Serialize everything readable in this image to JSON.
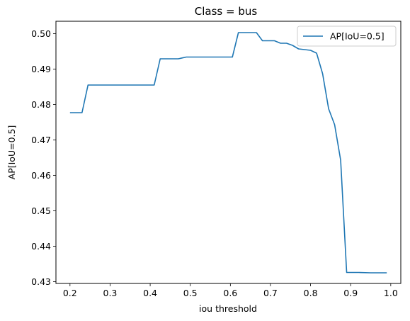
{
  "chart_data": {
    "type": "line",
    "title": "Class = bus",
    "xlabel": "iou threshold",
    "ylabel": "AP[IoU=0.5]",
    "xlim": [
      0.165,
      1.025
    ],
    "ylim": [
      0.4295,
      0.5035
    ],
    "xticks": [
      "0.2",
      "0.3",
      "0.4",
      "0.5",
      "0.6",
      "0.7",
      "0.8",
      "0.9",
      "1.0"
    ],
    "yticks": [
      "0.43",
      "0.44",
      "0.45",
      "0.46",
      "0.47",
      "0.48",
      "0.49",
      "0.50"
    ],
    "legend_position": "upper right",
    "grid": false,
    "series": [
      {
        "name": "AP[IoU=0.5]",
        "color": "#1f77b4",
        "x": [
          0.2,
          0.23,
          0.245,
          0.26,
          0.3,
          0.35,
          0.41,
          0.425,
          0.44,
          0.47,
          0.49,
          0.52,
          0.56,
          0.605,
          0.62,
          0.65,
          0.665,
          0.68,
          0.695,
          0.71,
          0.725,
          0.74,
          0.755,
          0.77,
          0.785,
          0.8,
          0.815,
          0.83,
          0.845,
          0.86,
          0.875,
          0.89,
          0.91,
          0.92,
          0.95,
          0.99
        ],
        "values": [
          0.4777,
          0.4777,
          0.4855,
          0.4855,
          0.4855,
          0.4855,
          0.4855,
          0.4929,
          0.4929,
          0.4929,
          0.4934,
          0.4934,
          0.4934,
          0.4934,
          0.5003,
          0.5003,
          0.5003,
          0.498,
          0.498,
          0.498,
          0.4973,
          0.4973,
          0.4967,
          0.4957,
          0.4955,
          0.4953,
          0.4945,
          0.4887,
          0.4788,
          0.4743,
          0.4643,
          0.4326,
          0.4326,
          0.4326,
          0.4325,
          0.4325
        ]
      }
    ]
  }
}
